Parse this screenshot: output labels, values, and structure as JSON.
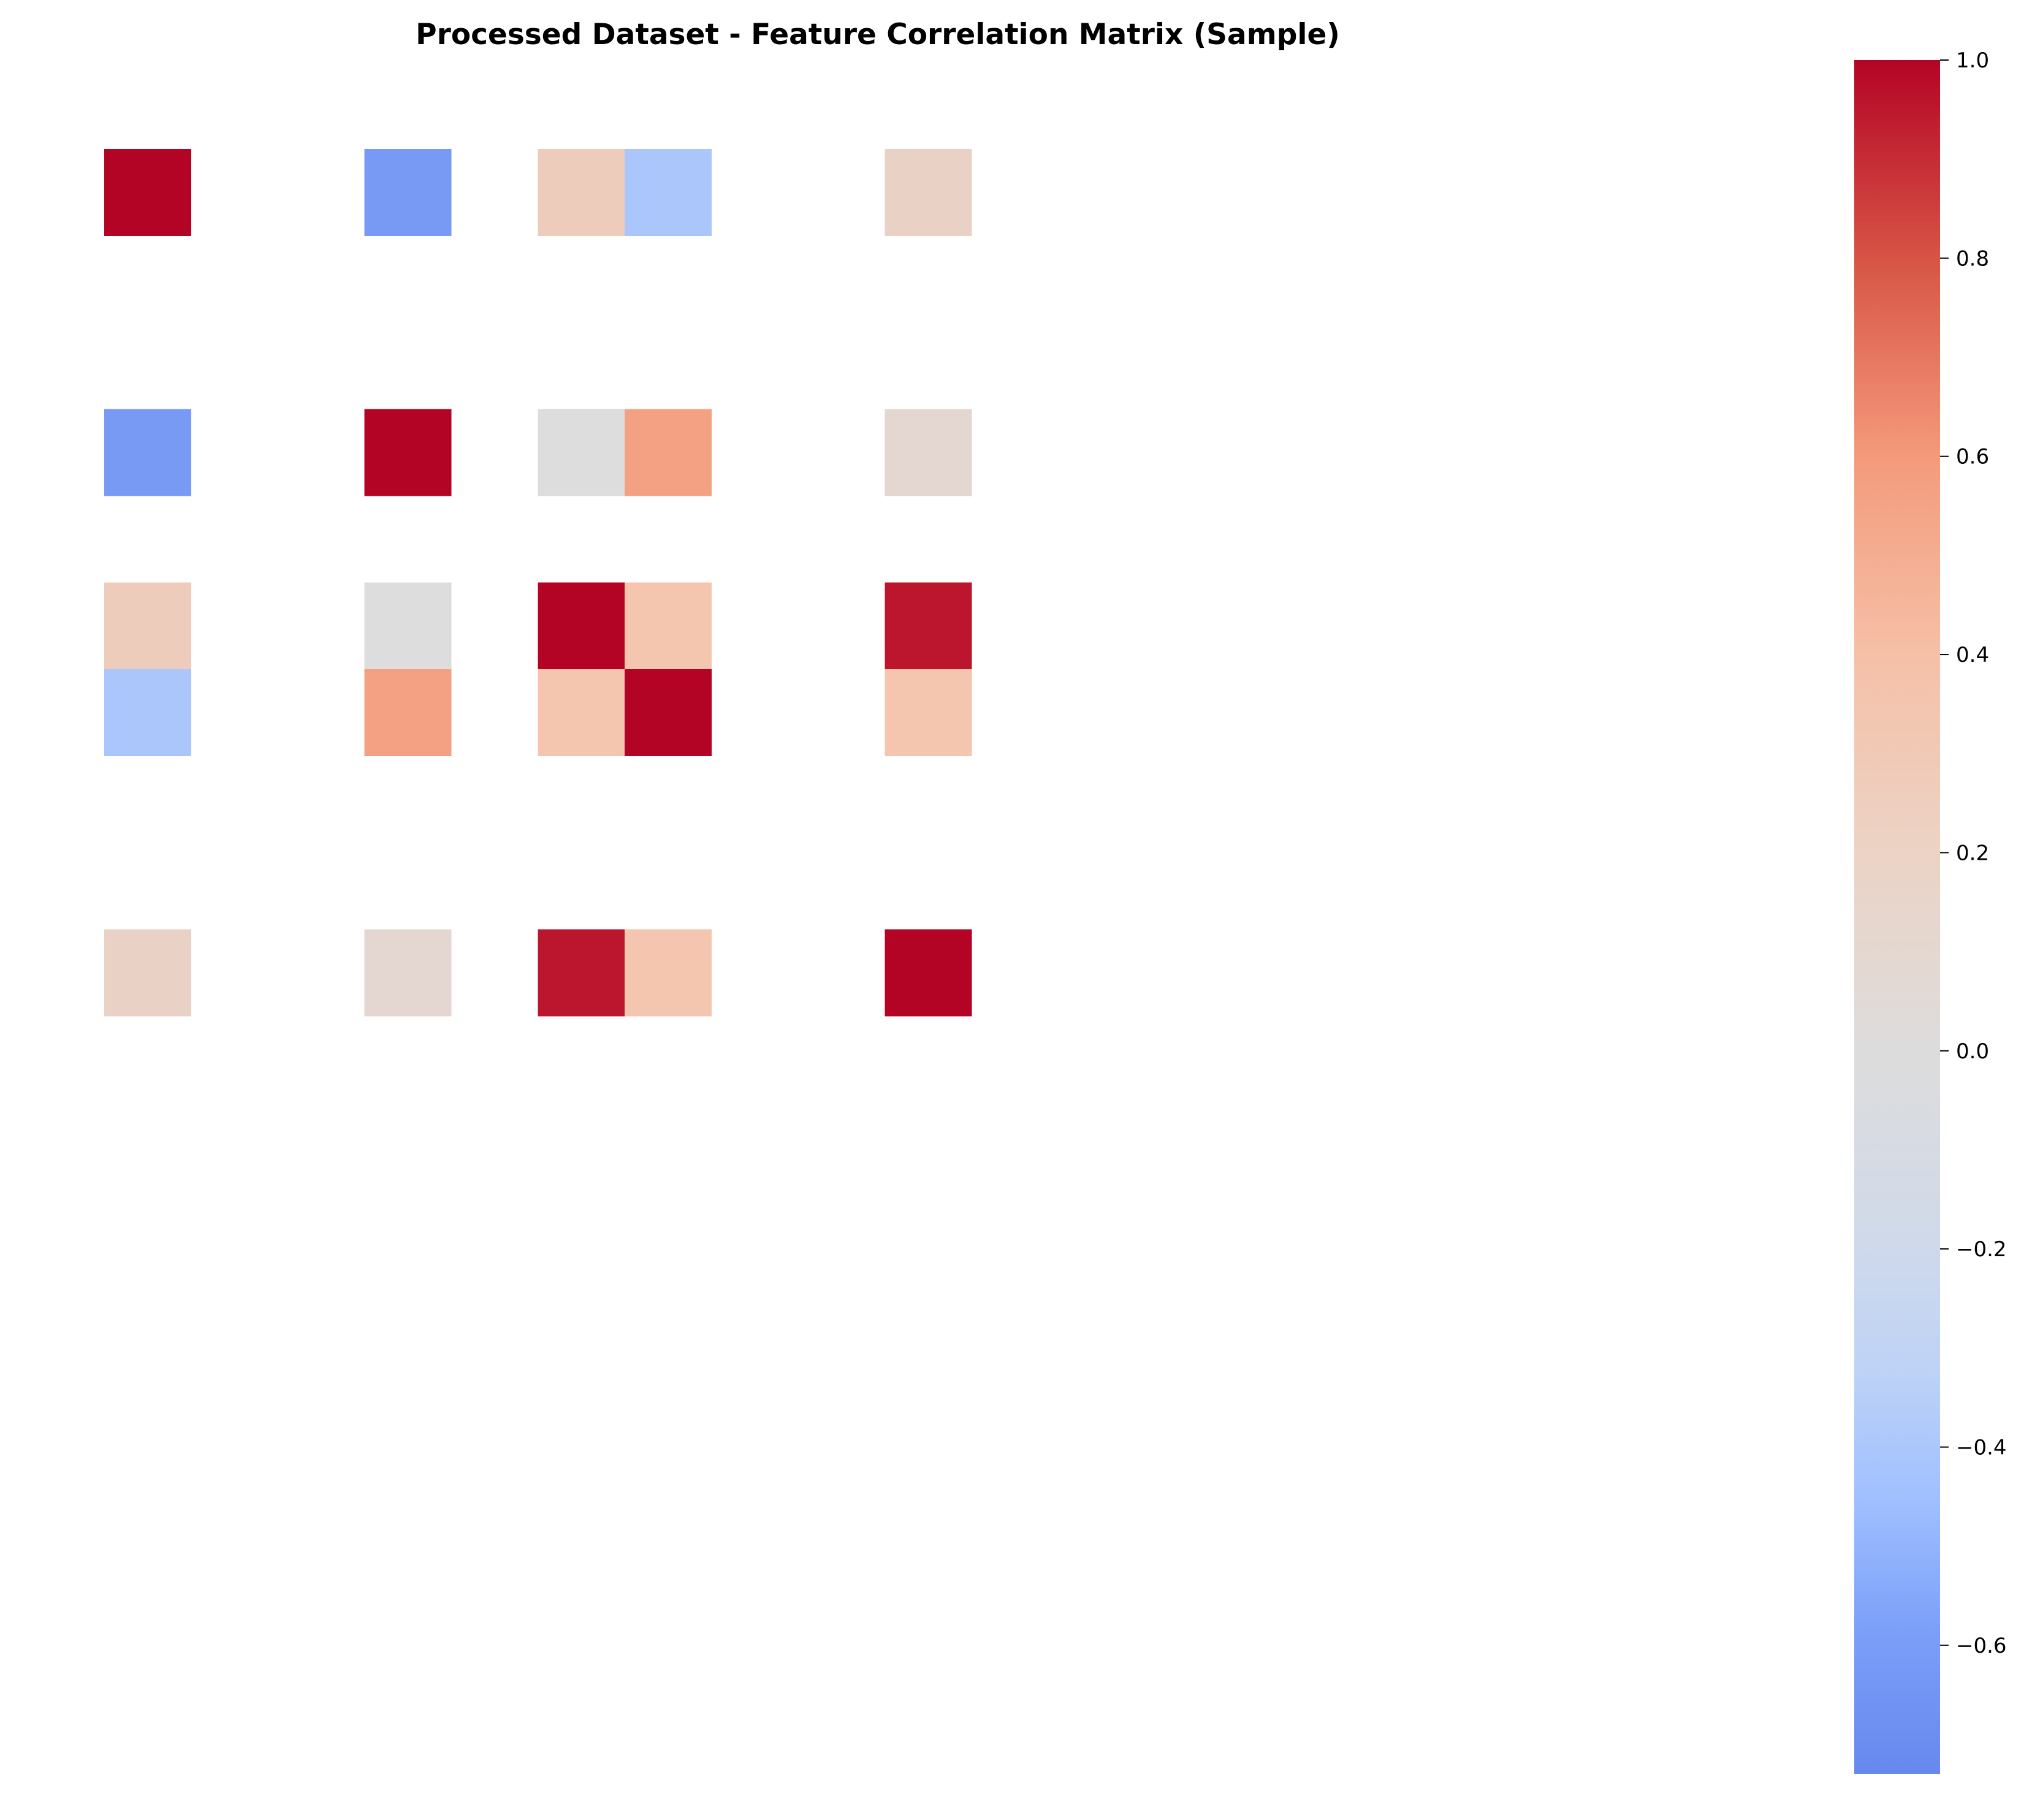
{
  "chart_data": {
    "type": "heatmap",
    "title": "Processed Dataset - Feature Correlation Matrix (Sample)",
    "colormap": "coolwarm",
    "vmin": -0.73,
    "vmax": 1.0,
    "grid_size": [
      17,
      17
    ],
    "cells": [
      {
        "row": 0,
        "col": 0,
        "value": 1.0
      },
      {
        "row": 0,
        "col": 3,
        "value": -0.62
      },
      {
        "row": 0,
        "col": 5,
        "value": 0.17
      },
      {
        "row": 0,
        "col": 6,
        "value": -0.33
      },
      {
        "row": 0,
        "col": 9,
        "value": 0.12
      },
      {
        "row": 3,
        "col": 0,
        "value": -0.62
      },
      {
        "row": 3,
        "col": 3,
        "value": 1.0
      },
      {
        "row": 3,
        "col": 5,
        "value": 0.0
      },
      {
        "row": 3,
        "col": 6,
        "value": 0.46
      },
      {
        "row": 3,
        "col": 9,
        "value": 0.07
      },
      {
        "row": 5,
        "col": 0,
        "value": 0.17
      },
      {
        "row": 5,
        "col": 3,
        "value": 0.0
      },
      {
        "row": 5,
        "col": 5,
        "value": 1.0
      },
      {
        "row": 5,
        "col": 6,
        "value": 0.24
      },
      {
        "row": 5,
        "col": 9,
        "value": 0.95
      },
      {
        "row": 6,
        "col": 0,
        "value": -0.33
      },
      {
        "row": 6,
        "col": 3,
        "value": 0.46
      },
      {
        "row": 6,
        "col": 5,
        "value": 0.24
      },
      {
        "row": 6,
        "col": 6,
        "value": 1.0
      },
      {
        "row": 6,
        "col": 9,
        "value": 0.24
      },
      {
        "row": 9,
        "col": 0,
        "value": 0.12
      },
      {
        "row": 9,
        "col": 3,
        "value": 0.07
      },
      {
        "row": 9,
        "col": 5,
        "value": 0.95
      },
      {
        "row": 9,
        "col": 6,
        "value": 0.24
      },
      {
        "row": 9,
        "col": 9,
        "value": 1.0
      }
    ],
    "colorbar": {
      "ticks": [
        1.0,
        0.8,
        0.6,
        0.4,
        0.2,
        0.0,
        -0.2,
        -0.4,
        -0.6
      ],
      "tick_labels": [
        "1.0",
        "0.8",
        "0.6",
        "0.4",
        "0.2",
        "0.0",
        "−0.2",
        "−0.4",
        "−0.6"
      ]
    }
  }
}
